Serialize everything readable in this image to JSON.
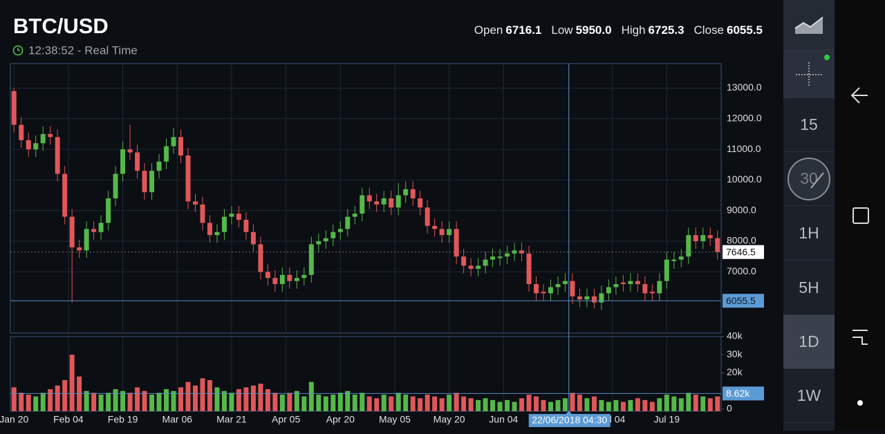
{
  "header": {
    "title": "BTC/USD",
    "time": "12:38:52 - Real Time",
    "ohlc": [
      {
        "label": "Open",
        "value": "6716.1"
      },
      {
        "label": "Low",
        "value": "5950.0"
      },
      {
        "label": "High",
        "value": "6725.3"
      },
      {
        "label": "Close",
        "value": "6055.5"
      }
    ]
  },
  "sidebar": {
    "intervals": [
      "15",
      "30",
      "1H",
      "5H",
      "1D",
      "1W"
    ]
  },
  "chart_data": [
    {
      "type": "candlestick",
      "x": [
        0,
        2,
        4,
        6,
        8,
        10,
        12,
        14,
        16,
        18,
        20,
        22,
        24,
        26,
        28,
        30,
        32,
        34,
        36,
        38,
        40,
        42,
        44,
        46,
        48,
        50,
        52,
        54,
        56,
        58,
        60,
        62,
        64,
        66,
        68,
        70,
        72,
        74,
        76,
        78,
        80,
        82,
        84,
        86,
        88,
        90,
        92,
        94,
        96,
        98,
        100,
        102,
        104,
        106,
        108,
        110,
        112,
        114,
        116,
        118,
        120,
        122,
        124,
        126,
        128,
        130,
        132,
        134,
        136,
        138,
        140,
        142,
        144,
        146,
        148,
        150,
        152,
        154,
        156,
        158,
        160,
        162,
        164,
        166,
        168,
        170,
        172,
        174,
        176,
        178,
        180,
        182,
        184,
        186,
        188,
        190,
        192,
        194
      ],
      "open": [
        12900,
        11800,
        11300,
        11000,
        11200,
        11500,
        11400,
        10200,
        8800,
        7800,
        7700,
        8400,
        8300,
        8600,
        9400,
        10200,
        11000,
        10900,
        10300,
        9600,
        10300,
        10600,
        11100,
        11400,
        10800,
        9300,
        9200,
        8600,
        8200,
        8300,
        8800,
        8900,
        8700,
        8300,
        7900,
        7000,
        6800,
        6600,
        6900,
        6700,
        6800,
        6900,
        7900,
        8000,
        8100,
        8300,
        8400,
        8800,
        8900,
        9500,
        9300,
        9200,
        9400,
        9100,
        9500,
        9700,
        9400,
        9100,
        8500,
        8400,
        8200,
        8400,
        7500,
        7200,
        7100,
        7200,
        7400,
        7450,
        7500,
        7600,
        7700,
        7600,
        6600,
        6350,
        6300,
        6500,
        6600,
        6700,
        6200,
        6100,
        6200,
        6000,
        6300,
        6500,
        6650,
        6600,
        6700,
        6600,
        6350,
        6300,
        6700,
        7350,
        7400,
        7500,
        8200,
        8000,
        8200,
        8100
      ],
      "high": [
        13000,
        12050,
        11550,
        11450,
        11750,
        11750,
        11650,
        10450,
        9050,
        8050,
        8650,
        8650,
        8850,
        9650,
        10450,
        11250,
        11800,
        11150,
        10550,
        10550,
        10850,
        11350,
        11700,
        11650,
        11050,
        9550,
        9450,
        8850,
        8550,
        9050,
        9150,
        9150,
        8950,
        8550,
        8150,
        7250,
        7050,
        7150,
        7150,
        7050,
        7150,
        8150,
        8250,
        8350,
        8550,
        8650,
        9050,
        9150,
        9750,
        9750,
        9550,
        9650,
        9650,
        9900,
        9950,
        9950,
        9650,
        9350,
        8750,
        8650,
        8650,
        8650,
        7750,
        7450,
        7450,
        7650,
        7750,
        7750,
        7850,
        7950,
        7950,
        7850,
        6850,
        6600,
        6750,
        6850,
        6950,
        6950,
        6450,
        6450,
        6450,
        6550,
        6750,
        6850,
        6900,
        6950,
        6950,
        6850,
        6600,
        6950,
        7650,
        7650,
        7750,
        8450,
        8450,
        8450,
        8450,
        8350
      ],
      "low": [
        11550,
        11050,
        10750,
        10750,
        10950,
        11150,
        9950,
        8550,
        6000,
        7450,
        7450,
        8050,
        8050,
        8350,
        9150,
        9950,
        10650,
        10050,
        9350,
        9350,
        10050,
        10350,
        10850,
        10550,
        9050,
        8950,
        8350,
        7950,
        7950,
        8050,
        8550,
        8450,
        8050,
        7650,
        6750,
        6550,
        6350,
        6350,
        6450,
        6450,
        6550,
        6650,
        7650,
        7750,
        7850,
        8050,
        8150,
        8550,
        8650,
        9050,
        8950,
        8950,
        8850,
        8850,
        9250,
        9150,
        8850,
        8250,
        8150,
        7950,
        7950,
        7250,
        6950,
        6850,
        6850,
        6950,
        7150,
        7200,
        7250,
        7350,
        7350,
        6350,
        6050,
        6050,
        6050,
        6250,
        6350,
        5950,
        5850,
        5850,
        5800,
        5750,
        6050,
        6250,
        6350,
        6350,
        6350,
        6050,
        6050,
        6050,
        6450,
        7100,
        7150,
        7250,
        7750,
        7750,
        7850,
        7400
      ],
      "close": [
        11800,
        11300,
        11000,
        11200,
        11500,
        11400,
        10200,
        8800,
        7800,
        7700,
        8400,
        8300,
        8600,
        9400,
        10200,
        11000,
        10900,
        10300,
        9600,
        10300,
        10600,
        11100,
        11400,
        10800,
        9300,
        9200,
        8600,
        8200,
        8300,
        8800,
        8900,
        8700,
        8300,
        7900,
        7000,
        6800,
        6600,
        6900,
        6700,
        6800,
        6900,
        7900,
        8000,
        8100,
        8300,
        8400,
        8800,
        8900,
        9500,
        9300,
        9200,
        9400,
        9100,
        9500,
        9700,
        9400,
        9100,
        8500,
        8400,
        8200,
        8400,
        7500,
        7200,
        7100,
        7200,
        7400,
        7500,
        7500,
        7600,
        7700,
        7600,
        6600,
        6300,
        6300,
        6500,
        6600,
        6700,
        6200,
        6100,
        6200,
        6000,
        6300,
        6500,
        6600,
        6600,
        6700,
        6600,
        6300,
        6300,
        6700,
        7400,
        7400,
        7500,
        8200,
        8000,
        8200,
        8100,
        7650
      ],
      "up_color": "#55b84a",
      "down_color": "#e0575a",
      "xlim": [
        -1,
        195
      ],
      "xticks": [
        {
          "value": 0,
          "label": "Jan 20"
        },
        {
          "value": 15,
          "label": "Feb 04"
        },
        {
          "value": 30,
          "label": "Feb 19"
        },
        {
          "value": 45,
          "label": "Mar 06"
        },
        {
          "value": 60,
          "label": "Mar 21"
        },
        {
          "value": 75,
          "label": "Apr 05"
        },
        {
          "value": 90,
          "label": "Apr 20"
        },
        {
          "value": 105,
          "label": "May 05"
        },
        {
          "value": 120,
          "label": "May 20"
        },
        {
          "value": 135,
          "label": "Jun 04"
        },
        {
          "value": 165,
          "label": "Jul 04"
        },
        {
          "value": 180,
          "label": "Jul 19"
        }
      ],
      "ylim": [
        5000,
        13800
      ],
      "yticks": [
        {
          "value": 7000,
          "label": "7000.0"
        },
        {
          "value": 8000,
          "label": "8000.0"
        },
        {
          "value": 9000,
          "label": "9000.0"
        },
        {
          "value": 10000,
          "label": "10000.0"
        },
        {
          "value": 11000,
          "label": "11000.0"
        },
        {
          "value": 12000,
          "label": "12000.0"
        },
        {
          "value": 13000,
          "label": "13000.0"
        }
      ],
      "grid": true,
      "last_price": 7646.5,
      "crosshair": {
        "x": 153,
        "x_label": "22/06/2018 04:30",
        "y": 6055.5
      }
    },
    {
      "type": "bar",
      "x": [
        0,
        2,
        4,
        6,
        8,
        10,
        12,
        14,
        16,
        18,
        20,
        22,
        24,
        26,
        28,
        30,
        32,
        34,
        36,
        38,
        40,
        42,
        44,
        46,
        48,
        50,
        52,
        54,
        56,
        58,
        60,
        62,
        64,
        66,
        68,
        70,
        72,
        74,
        76,
        78,
        80,
        82,
        84,
        86,
        88,
        90,
        92,
        94,
        96,
        98,
        100,
        102,
        104,
        106,
        108,
        110,
        112,
        114,
        116,
        118,
        120,
        122,
        124,
        126,
        128,
        130,
        132,
        134,
        136,
        138,
        140,
        142,
        144,
        146,
        148,
        150,
        152,
        154,
        156,
        158,
        160,
        162,
        164,
        166,
        168,
        170,
        172,
        174,
        176,
        178,
        180,
        182,
        184,
        186,
        188,
        190,
        192,
        194
      ],
      "values": [
        12000,
        9000,
        8000,
        7000,
        9000,
        11000,
        13000,
        16000,
        30000,
        18000,
        10000,
        9000,
        8000,
        9000,
        11000,
        10000,
        9000,
        12000,
        10000,
        8000,
        9000,
        11000,
        10000,
        12000,
        15000,
        13000,
        17000,
        16000,
        12000,
        10000,
        9000,
        11000,
        12000,
        13000,
        14000,
        11000,
        9000,
        8000,
        9000,
        10000,
        7000,
        15000,
        8000,
        7000,
        8000,
        9000,
        10000,
        8000,
        9000,
        7000,
        6000,
        8000,
        7000,
        9000,
        8000,
        7000,
        6000,
        8000,
        7000,
        6000,
        8000,
        9000,
        7000,
        6000,
        5000,
        6000,
        5000,
        4000,
        5000,
        4000,
        6000,
        8000,
        7000,
        5000,
        4000,
        5000,
        6000,
        9000,
        8000,
        6000,
        7000,
        5000,
        4000,
        5000,
        4000,
        5000,
        6000,
        5000,
        4000,
        6000,
        8000,
        7000,
        6000,
        9000,
        8000,
        7000,
        6000,
        7000
      ],
      "ylim": [
        0,
        40000
      ],
      "yticks": [
        0,
        {
          "value": 20000,
          "label": "20k"
        },
        {
          "value": 30000,
          "label": "30k"
        },
        {
          "value": 40000,
          "label": "40k"
        }
      ],
      "crosshair_value": {
        "value": 8620,
        "label": "8.62k"
      }
    }
  ]
}
